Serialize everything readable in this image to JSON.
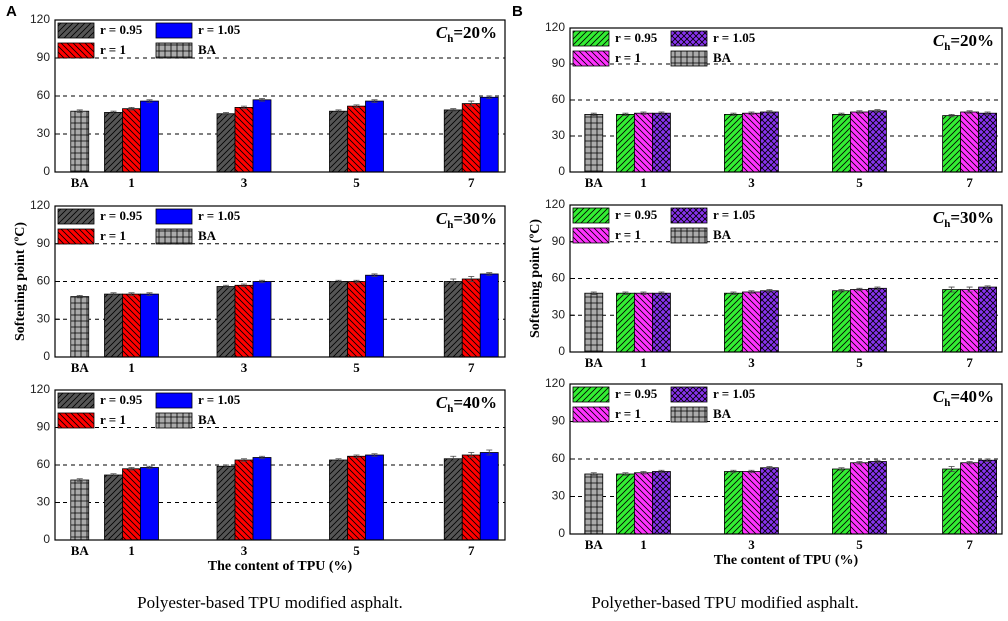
{
  "panel_labels": [
    "A",
    "B"
  ],
  "captions": [
    "Polyester-based TPU modified asphalt.",
    "Polyether-based TPU modified asphalt."
  ],
  "chart_data": [
    {
      "type": "bar",
      "categories": [
        "BA",
        "1",
        "3",
        "5",
        "7"
      ],
      "ylim": [
        0,
        120
      ],
      "yticks": [
        0,
        30,
        60,
        90,
        120
      ],
      "grid": true,
      "legend": "upper left",
      "annotation_symbol": "C",
      "annotation_subscript": "h",
      "annotation_value": "=20%",
      "series": [
        {
          "name": "r = 0.95",
          "color": "#555555",
          "hatch": "forward",
          "values": [
            null,
            47,
            46,
            48,
            49
          ],
          "errors": [
            null,
            1,
            1,
            1,
            1
          ]
        },
        {
          "name": "r = 1",
          "color": "#ff0000",
          "hatch": "backward",
          "values": [
            null,
            50,
            51,
            52,
            54
          ],
          "errors": [
            null,
            1,
            1,
            1,
            2
          ]
        },
        {
          "name": "r = 1.05",
          "color": "#0000ff",
          "hatch": "none",
          "values": [
            null,
            56,
            57,
            56,
            59
          ],
          "errors": [
            null,
            1,
            1,
            1,
            1
          ]
        },
        {
          "name": "BA",
          "color": "#aaaaaa",
          "hatch": "grid",
          "values": [
            48,
            null,
            null,
            null,
            null
          ],
          "errors": [
            1,
            null,
            null,
            null,
            null
          ]
        }
      ]
    },
    {
      "type": "bar",
      "categories": [
        "BA",
        "1",
        "3",
        "5",
        "7"
      ],
      "ylim": [
        0,
        120
      ],
      "yticks": [
        0,
        30,
        60,
        90,
        120
      ],
      "grid": true,
      "legend": "upper left",
      "annotation_symbol": "C",
      "annotation_subscript": "h",
      "annotation_value": "=30%",
      "ylabel": "Softening point (ºC)",
      "series": [
        {
          "name": "r = 0.95",
          "color": "#555555",
          "hatch": "forward",
          "values": [
            null,
            50,
            56,
            60,
            60
          ],
          "errors": [
            null,
            1,
            1,
            1,
            2
          ]
        },
        {
          "name": "r = 1",
          "color": "#ff0000",
          "hatch": "backward",
          "values": [
            null,
            50,
            57,
            60,
            62
          ],
          "errors": [
            null,
            1,
            1,
            1,
            2
          ]
        },
        {
          "name": "r = 1.05",
          "color": "#0000ff",
          "hatch": "none",
          "values": [
            null,
            50,
            60,
            65,
            66
          ],
          "errors": [
            null,
            1,
            1,
            1,
            1
          ]
        },
        {
          "name": "BA",
          "color": "#aaaaaa",
          "hatch": "grid",
          "values": [
            48,
            null,
            null,
            null,
            null
          ],
          "errors": [
            1,
            null,
            null,
            null,
            null
          ]
        }
      ]
    },
    {
      "type": "bar",
      "categories": [
        "BA",
        "1",
        "3",
        "5",
        "7"
      ],
      "ylim": [
        0,
        120
      ],
      "yticks": [
        0,
        30,
        60,
        90,
        120
      ],
      "grid": true,
      "legend": "upper left",
      "annotation_symbol": "C",
      "annotation_subscript": "h",
      "annotation_value": "=40%",
      "xlabel": "The content of TPU (%)",
      "series": [
        {
          "name": "r = 0.95",
          "color": "#555555",
          "hatch": "forward",
          "values": [
            null,
            52,
            59,
            64,
            65
          ],
          "errors": [
            null,
            1,
            1,
            1,
            2
          ]
        },
        {
          "name": "r = 1",
          "color": "#ff0000",
          "hatch": "backward",
          "values": [
            null,
            57,
            64,
            67,
            68
          ],
          "errors": [
            null,
            1,
            1,
            1,
            2
          ]
        },
        {
          "name": "r = 1.05",
          "color": "#0000ff",
          "hatch": "none",
          "values": [
            null,
            58,
            66,
            68,
            70
          ],
          "errors": [
            null,
            1,
            1,
            1,
            2
          ]
        },
        {
          "name": "BA",
          "color": "#aaaaaa",
          "hatch": "grid",
          "values": [
            48,
            null,
            null,
            null,
            null
          ],
          "errors": [
            1,
            null,
            null,
            null,
            null
          ]
        }
      ]
    },
    {
      "type": "bar",
      "categories": [
        "BA",
        "1",
        "3",
        "5",
        "7"
      ],
      "ylim": [
        0,
        120
      ],
      "yticks": [
        0,
        30,
        60,
        90,
        120
      ],
      "grid": true,
      "legend": "upper left",
      "annotation_symbol": "C",
      "annotation_subscript": "h",
      "annotation_value": "=20%",
      "series": [
        {
          "name": "r = 0.95",
          "color": "#33ee33",
          "hatch": "forward",
          "values": [
            null,
            48,
            48,
            48,
            47
          ],
          "errors": [
            null,
            1,
            1,
            1,
            1
          ]
        },
        {
          "name": "r = 1",
          "color": "#ff33ff",
          "hatch": "backward",
          "values": [
            null,
            49,
            49,
            50,
            50
          ],
          "errors": [
            null,
            1,
            1,
            1,
            1
          ]
        },
        {
          "name": "r = 1.05",
          "color": "#8833ee",
          "hatch": "cross",
          "values": [
            null,
            49,
            50,
            51,
            49
          ],
          "errors": [
            null,
            1,
            1,
            1,
            1
          ]
        },
        {
          "name": "BA",
          "color": "#aaaaaa",
          "hatch": "grid",
          "values": [
            48,
            null,
            null,
            null,
            null
          ],
          "errors": [
            1,
            null,
            null,
            null,
            null
          ]
        }
      ]
    },
    {
      "type": "bar",
      "categories": [
        "BA",
        "1",
        "3",
        "5",
        "7"
      ],
      "ylim": [
        0,
        120
      ],
      "yticks": [
        0,
        30,
        60,
        90,
        120
      ],
      "grid": true,
      "legend": "upper left",
      "annotation_symbol": "C",
      "annotation_subscript": "h",
      "annotation_value": "=30%",
      "ylabel": "Softening point (ºC)",
      "series": [
        {
          "name": "r = 0.95",
          "color": "#33ee33",
          "hatch": "forward",
          "values": [
            null,
            48,
            48,
            50,
            51
          ],
          "errors": [
            null,
            1,
            1,
            1,
            2
          ]
        },
        {
          "name": "r = 1",
          "color": "#ff33ff",
          "hatch": "backward",
          "values": [
            null,
            48,
            49,
            51,
            51
          ],
          "errors": [
            null,
            1,
            1,
            1,
            2
          ]
        },
        {
          "name": "r = 1.05",
          "color": "#8833ee",
          "hatch": "cross",
          "values": [
            null,
            48,
            50,
            52,
            53
          ],
          "errors": [
            null,
            1,
            1,
            1,
            1
          ]
        },
        {
          "name": "BA",
          "color": "#aaaaaa",
          "hatch": "grid",
          "values": [
            48,
            null,
            null,
            null,
            null
          ],
          "errors": [
            1,
            null,
            null,
            null,
            null
          ]
        }
      ]
    },
    {
      "type": "bar",
      "categories": [
        "BA",
        "1",
        "3",
        "5",
        "7"
      ],
      "ylim": [
        0,
        120
      ],
      "yticks": [
        0,
        30,
        60,
        90,
        120
      ],
      "grid": true,
      "legend": "upper left",
      "annotation_symbol": "C",
      "annotation_subscript": "h",
      "annotation_value": "=40%",
      "xlabel": "The content of TPU (%)",
      "series": [
        {
          "name": "r = 0.95",
          "color": "#33ee33",
          "hatch": "forward",
          "values": [
            null,
            48,
            50,
            52,
            52
          ],
          "errors": [
            null,
            1,
            1,
            1,
            2
          ]
        },
        {
          "name": "r = 1",
          "color": "#ff33ff",
          "hatch": "backward",
          "values": [
            null,
            49,
            50,
            57,
            57
          ],
          "errors": [
            null,
            1,
            1,
            1,
            1
          ]
        },
        {
          "name": "r = 1.05",
          "color": "#8833ee",
          "hatch": "cross",
          "values": [
            null,
            50,
            53,
            58,
            59
          ],
          "errors": [
            null,
            1,
            1,
            1,
            1
          ]
        },
        {
          "name": "BA",
          "color": "#aaaaaa",
          "hatch": "grid",
          "values": [
            48,
            null,
            null,
            null,
            null
          ],
          "errors": [
            1,
            null,
            null,
            null,
            null
          ]
        }
      ]
    }
  ]
}
